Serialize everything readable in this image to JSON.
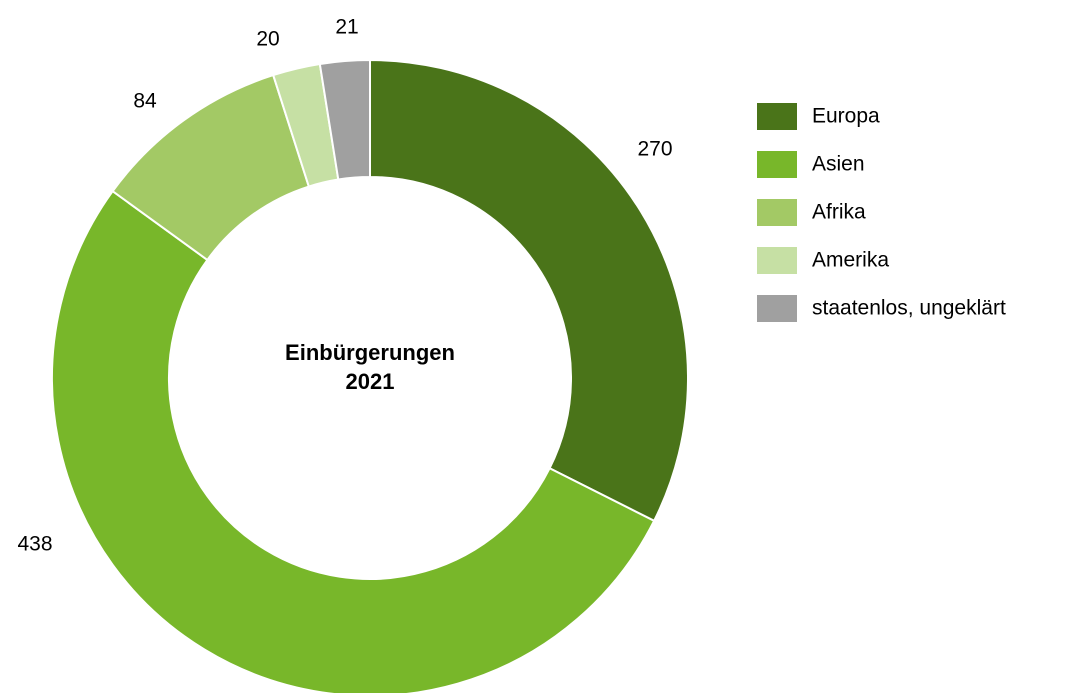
{
  "chart_data": {
    "type": "donut",
    "center_label": [
      "Einbürgerungen",
      "2021"
    ],
    "categories": [
      "Europa",
      "Asien",
      "Afrika",
      "Amerika",
      "staatenlos, ungeklärt"
    ],
    "values": [
      270,
      438,
      84,
      20,
      21
    ],
    "colors": [
      "#4a7419",
      "#78b72a",
      "#a3c965",
      "#c6e0a4",
      "#a0a0a0"
    ]
  }
}
